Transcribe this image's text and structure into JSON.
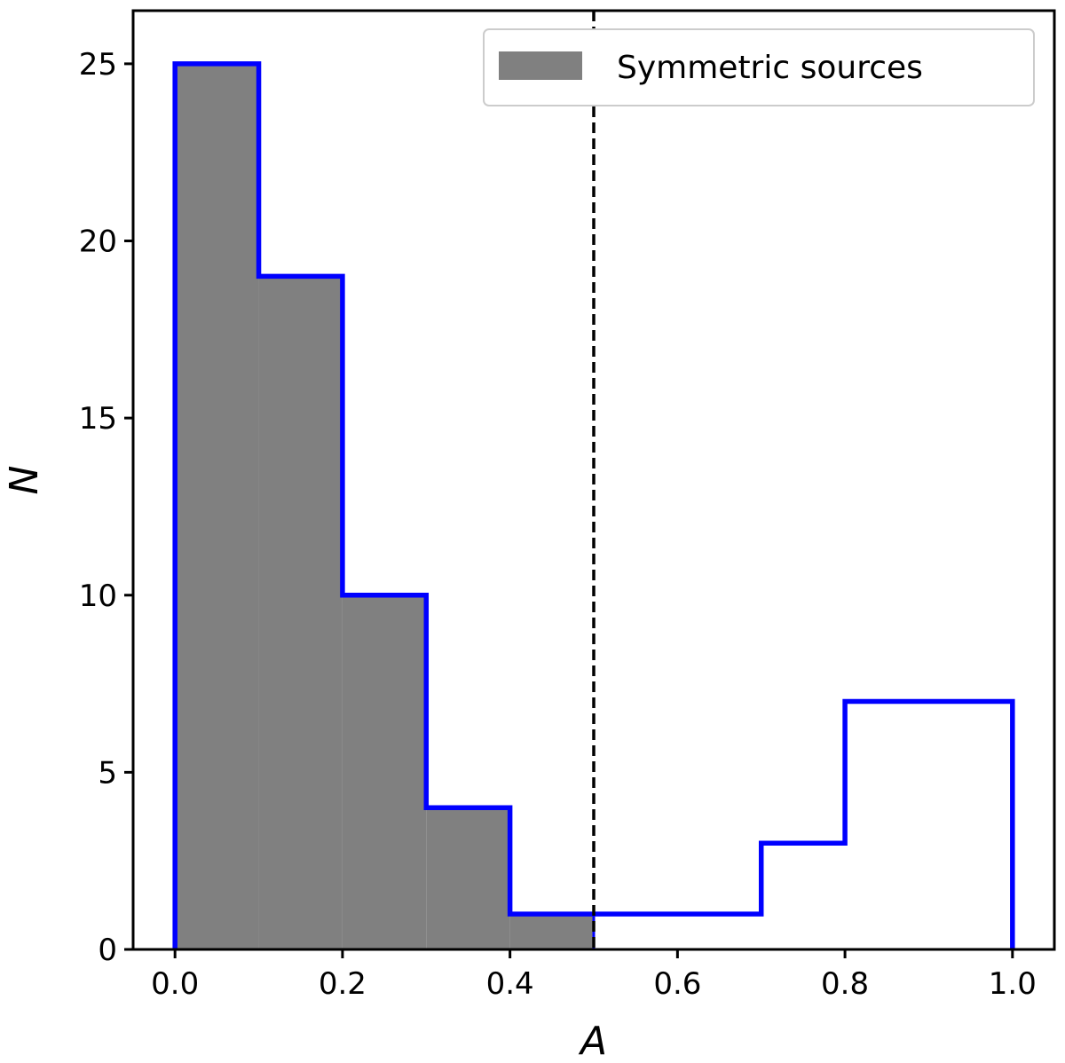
{
  "chart_data": {
    "type": "bar",
    "subtype": "histogram",
    "xlabel": "A",
    "ylabel": "N",
    "xlim": [
      -0.05,
      1.05
    ],
    "ylim": [
      0,
      26.5
    ],
    "x_ticks": [
      0.0,
      0.2,
      0.4,
      0.6,
      0.8,
      1.0
    ],
    "x_tick_labels": [
      "0.0",
      "0.2",
      "0.4",
      "0.6",
      "0.8",
      "1.0"
    ],
    "y_ticks": [
      0,
      5,
      10,
      15,
      20,
      25
    ],
    "y_tick_labels": [
      "0",
      "5",
      "10",
      "15",
      "20",
      "25"
    ],
    "bin_edges": [
      0.0,
      0.1,
      0.2,
      0.3,
      0.4,
      0.5,
      0.6,
      0.7,
      0.8,
      0.9,
      1.0
    ],
    "series": [
      {
        "name": "Symmetric sources",
        "style": "filled",
        "color": "#808080",
        "edge_color": "#0000ff",
        "values": [
          25,
          19,
          10,
          4,
          1
        ]
      },
      {
        "style": "step",
        "color": "#0000ff",
        "values": [
          25,
          19,
          10,
          4,
          1,
          1,
          1,
          3,
          7,
          7
        ]
      }
    ],
    "threshold_line": {
      "x": 0.5,
      "style": "dashed",
      "color": "#000000"
    },
    "legend": {
      "position": "top-right",
      "entries": [
        "Symmetric sources"
      ]
    },
    "grid": false
  }
}
